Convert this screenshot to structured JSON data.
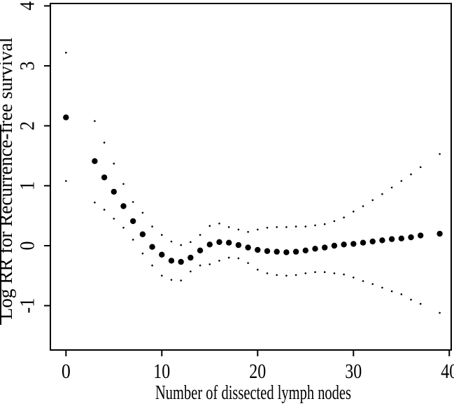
{
  "figure": {
    "background": "#ffffff",
    "ink_color": "#000000"
  },
  "chart_data": {
    "type": "scatter",
    "title": "",
    "xlabel": "Number of dissected lymph nodes",
    "ylabel": "Log RR for Recurrence-free survival",
    "xlim": [
      -1.63,
      40.2
    ],
    "ylim": [
      -1.74,
      4.04
    ],
    "grid": false,
    "legend": null,
    "x_ticks": [
      {
        "value": 0,
        "label": "0"
      },
      {
        "value": 10,
        "label": "10"
      },
      {
        "value": 20,
        "label": "20"
      },
      {
        "value": 30,
        "label": "30"
      },
      {
        "value": 40,
        "label": "40"
      }
    ],
    "y_ticks": [
      {
        "value": 4,
        "label": "4"
      },
      {
        "value": 3,
        "label": "3"
      },
      {
        "value": 2,
        "label": "2"
      },
      {
        "value": 1,
        "label": "1"
      },
      {
        "value": 0,
        "label": "0"
      },
      {
        "value": -1,
        "label": "-1"
      }
    ],
    "x": [
      0,
      3,
      4,
      5,
      6,
      7,
      8,
      9,
      10,
      11,
      12,
      13,
      14,
      15,
      16,
      17,
      18,
      19,
      20,
      21,
      22,
      23,
      24,
      25,
      26,
      27,
      28,
      29,
      30,
      31,
      32,
      33,
      34,
      35,
      36,
      37,
      39
    ],
    "series": [
      {
        "name": "point-estimate",
        "marker": "filled-circle",
        "radius": 4.2,
        "values": [
          2.14,
          1.41,
          1.14,
          0.9,
          0.66,
          0.41,
          0.19,
          -0.02,
          -0.15,
          -0.25,
          -0.27,
          -0.2,
          -0.08,
          0.02,
          0.06,
          0.05,
          0.01,
          -0.03,
          -0.07,
          -0.09,
          -0.1,
          -0.11,
          -0.1,
          -0.08,
          -0.05,
          -0.03,
          0.0,
          0.02,
          0.03,
          0.05,
          0.07,
          0.09,
          0.11,
          0.12,
          0.14,
          0.17,
          0.2
        ]
      },
      {
        "name": "upper-ci",
        "marker": "dot",
        "radius": 1.3,
        "values": [
          3.22,
          2.08,
          1.72,
          1.37,
          1.03,
          0.73,
          0.55,
          0.32,
          0.18,
          0.07,
          0.01,
          0.06,
          0.18,
          0.33,
          0.37,
          0.31,
          0.27,
          0.23,
          0.27,
          0.3,
          0.31,
          0.31,
          0.32,
          0.32,
          0.34,
          0.36,
          0.41,
          0.47,
          0.57,
          0.66,
          0.76,
          0.86,
          0.97,
          1.08,
          1.19,
          1.31,
          1.53
        ]
      },
      {
        "name": "lower-ci",
        "marker": "dot",
        "radius": 1.3,
        "values": [
          1.08,
          0.72,
          0.6,
          0.45,
          0.3,
          0.1,
          -0.13,
          -0.33,
          -0.5,
          -0.57,
          -0.58,
          -0.43,
          -0.33,
          -0.31,
          -0.25,
          -0.2,
          -0.21,
          -0.29,
          -0.4,
          -0.46,
          -0.49,
          -0.5,
          -0.49,
          -0.46,
          -0.44,
          -0.44,
          -0.46,
          -0.48,
          -0.53,
          -0.59,
          -0.64,
          -0.7,
          -0.76,
          -0.81,
          -0.9,
          -0.97,
          -1.12
        ]
      }
    ]
  }
}
